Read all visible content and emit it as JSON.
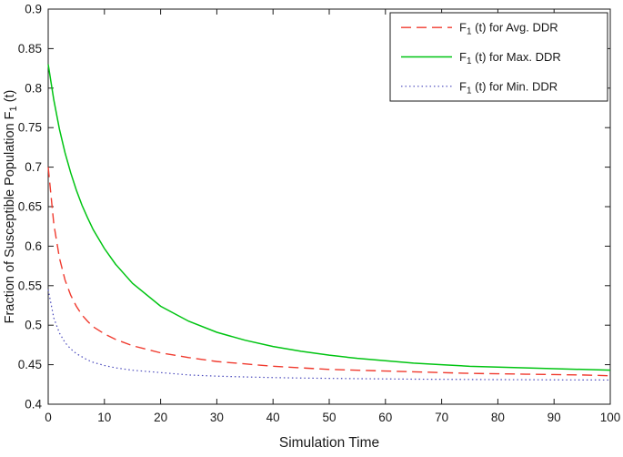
{
  "chart_data": {
    "type": "line",
    "title": "",
    "xlabel": "Simulation Time",
    "ylabel_parts": {
      "prefix": "Fraction of Susceptible Population F",
      "sub": "1",
      "suffix": " (t)"
    },
    "xlim": [
      0,
      100
    ],
    "ylim": [
      0.4,
      0.9
    ],
    "xticks": [
      0,
      10,
      20,
      30,
      40,
      50,
      60,
      70,
      80,
      90,
      100
    ],
    "xtick_labels": [
      "0",
      "10",
      "20",
      "30",
      "40",
      "50",
      "60",
      "70",
      "80",
      "90",
      "100"
    ],
    "yticks": [
      0.4,
      0.45,
      0.5,
      0.55,
      0.6,
      0.65,
      0.7,
      0.75,
      0.8,
      0.85,
      0.9
    ],
    "ytick_labels": [
      "0.4",
      "0.45",
      "0.5",
      "0.55",
      "0.6",
      "0.65",
      "0.7",
      "0.75",
      "0.8",
      "0.85",
      "0.9"
    ],
    "grid": false,
    "legend_position": "top-right",
    "axis_color": "#1a1a1a",
    "x": [
      0,
      1,
      2,
      3,
      4,
      5,
      6,
      7,
      8,
      10,
      12,
      15,
      20,
      25,
      30,
      35,
      40,
      45,
      50,
      55,
      60,
      65,
      70,
      75,
      80,
      85,
      90,
      95,
      100
    ],
    "series": [
      {
        "id": "avg-ddr",
        "name_parts": {
          "prefix": "F",
          "sub": "1",
          "suffix": " (t) for Avg. DDR"
        },
        "color": "#f03a2e",
        "style": "dashed",
        "width": 1.4,
        "values": [
          0.7,
          0.628,
          0.585,
          0.557,
          0.538,
          0.524,
          0.513,
          0.505,
          0.498,
          0.489,
          0.482,
          0.474,
          0.465,
          0.459,
          0.454,
          0.451,
          0.448,
          0.446,
          0.444,
          0.443,
          0.442,
          0.441,
          0.44,
          0.439,
          0.4385,
          0.438,
          0.4375,
          0.437,
          0.436
        ]
      },
      {
        "id": "max-ddr",
        "name_parts": {
          "prefix": "F",
          "sub": "1",
          "suffix": " (t) for Max. DDR"
        },
        "color": "#00c412",
        "style": "solid",
        "width": 1.5,
        "values": [
          0.83,
          0.785,
          0.748,
          0.718,
          0.693,
          0.671,
          0.652,
          0.636,
          0.621,
          0.597,
          0.577,
          0.553,
          0.524,
          0.505,
          0.491,
          0.481,
          0.473,
          0.467,
          0.462,
          0.458,
          0.455,
          0.452,
          0.45,
          0.448,
          0.447,
          0.446,
          0.445,
          0.444,
          0.443
        ]
      },
      {
        "id": "min-ddr",
        "name_parts": {
          "prefix": "F",
          "sub": "1",
          "suffix": " (t) for Min. DDR"
        },
        "color": "#4747bb",
        "style": "dotted",
        "width": 1.2,
        "values": [
          0.545,
          0.509,
          0.49,
          0.478,
          0.47,
          0.464,
          0.46,
          0.456,
          0.453,
          0.449,
          0.446,
          0.443,
          0.44,
          0.437,
          0.4355,
          0.4345,
          0.4337,
          0.4331,
          0.4327,
          0.4323,
          0.432,
          0.4317,
          0.4315,
          0.4313,
          0.4311,
          0.431,
          0.4308,
          0.4307,
          0.4306
        ]
      }
    ]
  }
}
